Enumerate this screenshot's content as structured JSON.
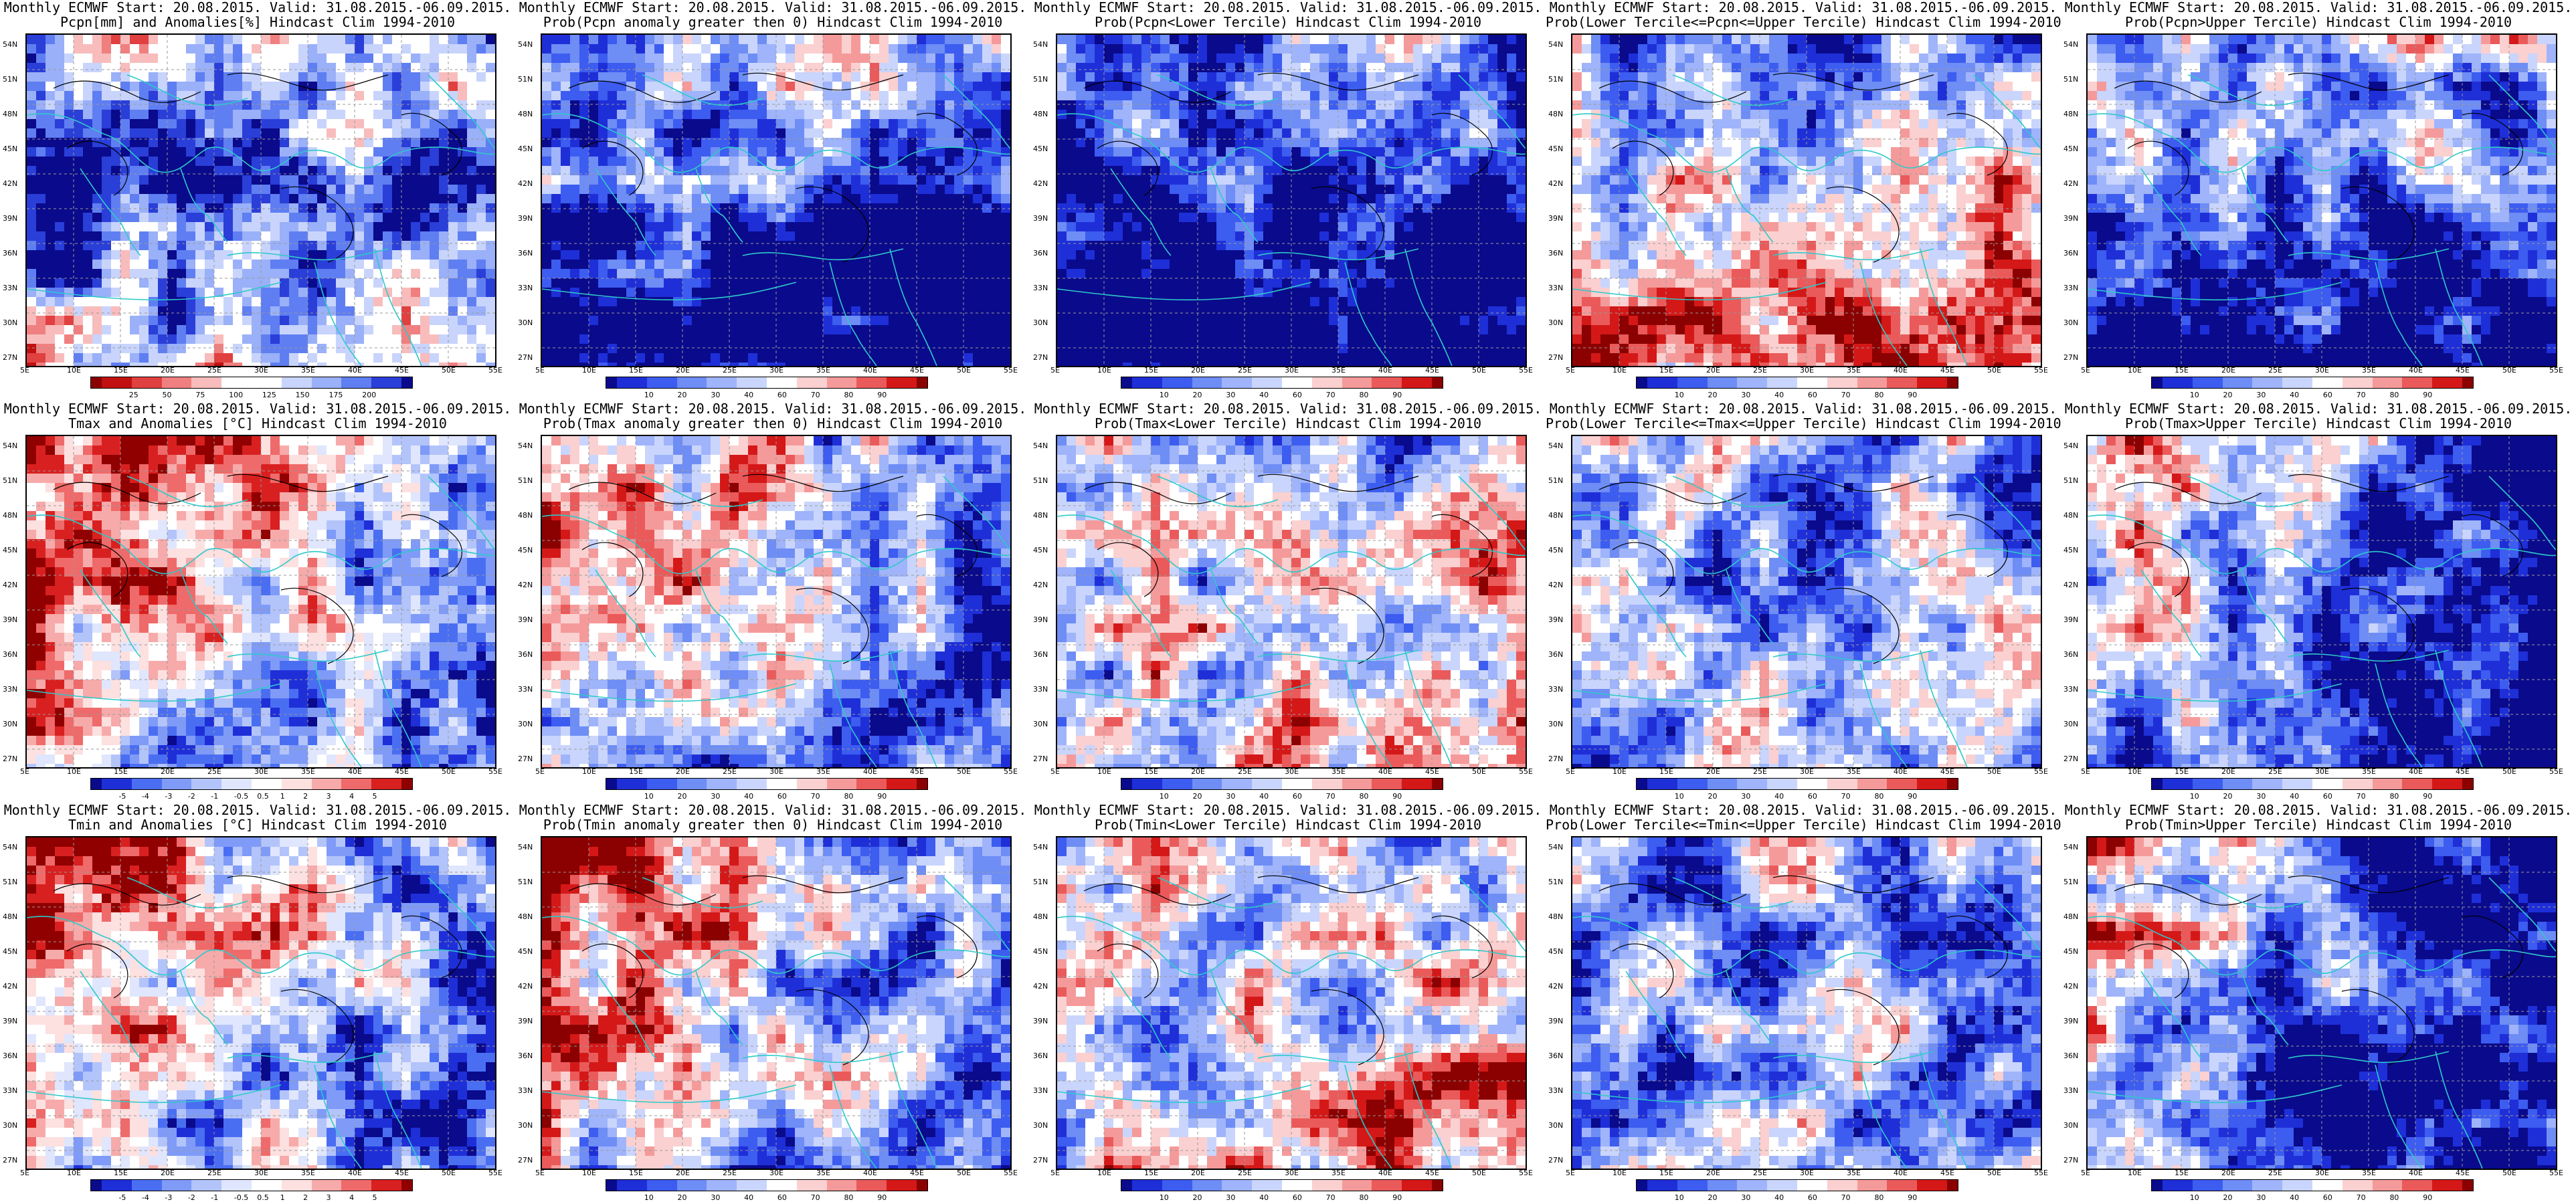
{
  "palettes": {
    "prob": [
      "#0a0a8c",
      "#1e2fd8",
      "#3d5cf0",
      "#6e8df5",
      "#9fb4fa",
      "#c9d5fc",
      "#ffffff",
      "#fbd0d0",
      "#f59a9a",
      "#ea5a5a",
      "#d41818",
      "#8b0000"
    ],
    "anom": [
      "#0a0a8c",
      "#1e2fd8",
      "#4a6ef2",
      "#7f9bf7",
      "#b3c4fb",
      "#dfe6fd",
      "#ffffff",
      "#fde0e0",
      "#f7aaaa",
      "#ef6a6a",
      "#d92020",
      "#900000"
    ],
    "pcpn": [
      "#8b0000",
      "#c01010",
      "#e04040",
      "#f08080",
      "#f8bcbc",
      "#ffffff",
      "#ffffff",
      "#c8d4fc",
      "#9ab0f8",
      "#5f7ef2",
      "#2a3ed8",
      "#0a0a8c"
    ],
    "coast": "#2ec9c9",
    "contour": "#000000",
    "grid": "#9a9a9a"
  },
  "axes": {
    "lat_labels": [
      "54N",
      "51N",
      "48N",
      "45N",
      "42N",
      "39N",
      "36N",
      "33N",
      "30N",
      "27N"
    ],
    "lon_labels": [
      "5E",
      "10E",
      "15E",
      "20E",
      "25E",
      "30E",
      "35E",
      "40E",
      "45E",
      "50E",
      "55E"
    ]
  },
  "colorbars": {
    "prob": [
      "10",
      "20",
      "30",
      "40",
      "60",
      "70",
      "80",
      "90"
    ],
    "anom_t": [
      "-5",
      "-4",
      "-3",
      "-2",
      "-1",
      "-0.5",
      "0.5",
      "1",
      "2",
      "3",
      "4",
      "5"
    ],
    "pcpn": [
      "25",
      "50",
      "75",
      "100",
      "125",
      "150",
      "175",
      "200"
    ]
  },
  "panels": [
    {
      "line1": "Monthly ECMWF Start: 20.08.2015. Valid: 31.08.2015.-06.09.2015.",
      "line2": "Pcpn[mm] and Anomalies[%] Hindcast Clim 1994-2010",
      "palette": "pcpn",
      "cbar": "pcpn",
      "seed": 11,
      "bias": 0.1,
      "gradient": "pcpn"
    },
    {
      "line1": "Monthly ECMWF Start: 20.08.2015. Valid: 31.08.2015.-06.09.2015.",
      "line2": "Prob(Pcpn anomaly greater then 0) Hindcast Clim 1994-2010",
      "palette": "prob",
      "cbar": "prob",
      "seed": 21,
      "bias": -0.25,
      "gradient": "southblue"
    },
    {
      "line1": "Monthly ECMWF Start: 20.08.2015. Valid: 31.08.2015.-06.09.2015.",
      "line2": "Prob(Pcpn<Lower Tercile) Hindcast Clim 1994-2010",
      "palette": "prob",
      "cbar": "prob",
      "seed": 31,
      "bias": -0.35,
      "gradient": "southblue"
    },
    {
      "line1": "Monthly ECMWF Start: 20.08.2015. Valid: 31.08.2015.-06.09.2015.",
      "line2": "Prob(Lower Tercile<=Pcpn<=Upper Tercile) Hindcast Clim 1994-2010",
      "palette": "prob",
      "cbar": "prob",
      "seed": 41,
      "bias": 0.0,
      "gradient": "southred"
    },
    {
      "line1": "Monthly ECMWF Start: 20.08.2015. Valid: 31.08.2015.-06.09.2015.",
      "line2": "Prob(Pcpn>Upper Tercile) Hindcast Clim 1994-2010",
      "palette": "prob",
      "cbar": "prob",
      "seed": 51,
      "bias": -0.2,
      "gradient": "southblue"
    },
    {
      "line1": "Monthly ECMWF Start: 20.08.2015. Valid: 31.08.2015.-06.09.2015.",
      "line2": "Tmax and Anomalies [°C] Hindcast Clim 1994-2010",
      "palette": "anom",
      "cbar": "anom_t",
      "seed": 61,
      "bias": 0.0,
      "gradient": "northred"
    },
    {
      "line1": "Monthly ECMWF Start: 20.08.2015. Valid: 31.08.2015.-06.09.2015.",
      "line2": "Prob(Tmax anomaly greater then 0) Hindcast Clim 1994-2010",
      "palette": "prob",
      "cbar": "prob",
      "seed": 71,
      "bias": -0.05,
      "gradient": "northred"
    },
    {
      "line1": "Monthly ECMWF Start: 20.08.2015. Valid: 31.08.2015.-06.09.2015.",
      "line2": "Prob(Tmax<Lower Tercile) Hindcast Clim 1994-2010",
      "palette": "prob",
      "cbar": "prob",
      "seed": 81,
      "bias": 0.05,
      "gradient": "eastred"
    },
    {
      "line1": "Monthly ECMWF Start: 20.08.2015. Valid: 31.08.2015.-06.09.2015.",
      "line2": "Prob(Lower Tercile<=Tmax<=Upper Tercile) Hindcast Clim 1994-2010",
      "palette": "prob",
      "cbar": "prob",
      "seed": 91,
      "bias": -0.15,
      "gradient": "none"
    },
    {
      "line1": "Monthly ECMWF Start: 20.08.2015. Valid: 31.08.2015.-06.09.2015.",
      "line2": "Prob(Tmax>Upper Tercile) Hindcast Clim 1994-2010",
      "palette": "prob",
      "cbar": "prob",
      "seed": 101,
      "bias": -0.25,
      "gradient": "northred"
    },
    {
      "line1": "Monthly ECMWF Start: 20.08.2015. Valid: 31.08.2015.-06.09.2015.",
      "line2": "Tmin and Anomalies [°C] Hindcast Clim 1994-2010",
      "palette": "anom",
      "cbar": "anom_t",
      "seed": 111,
      "bias": -0.05,
      "gradient": "northred"
    },
    {
      "line1": "Monthly ECMWF Start: 20.08.2015. Valid: 31.08.2015.-06.09.2015.",
      "line2": "Prob(Tmin anomaly greater then 0) Hindcast Clim 1994-2010",
      "palette": "prob",
      "cbar": "prob",
      "seed": 121,
      "bias": -0.05,
      "gradient": "northred"
    },
    {
      "line1": "Monthly ECMWF Start: 20.08.2015. Valid: 31.08.2015.-06.09.2015.",
      "line2": "Prob(Tmin<Lower Tercile) Hindcast Clim 1994-2010",
      "palette": "prob",
      "cbar": "prob",
      "seed": 131,
      "bias": 0.05,
      "gradient": "eastred"
    },
    {
      "line1": "Monthly ECMWF Start: 20.08.2015. Valid: 31.08.2015.-06.09.2015.",
      "line2": "Prob(Lower Tercile<=Tmin<=Upper Tercile) Hindcast Clim 1994-2010",
      "palette": "prob",
      "cbar": "prob",
      "seed": 141,
      "bias": -0.15,
      "gradient": "none"
    },
    {
      "line1": "Monthly ECMWF Start: 20.08.2015. Valid: 31.08.2015.-06.09.2015.",
      "line2": "Prob(Tmin>Upper Tercile) Hindcast Clim 1994-2010",
      "palette": "prob",
      "cbar": "prob",
      "seed": 151,
      "bias": -0.25,
      "gradient": "northred"
    }
  ]
}
